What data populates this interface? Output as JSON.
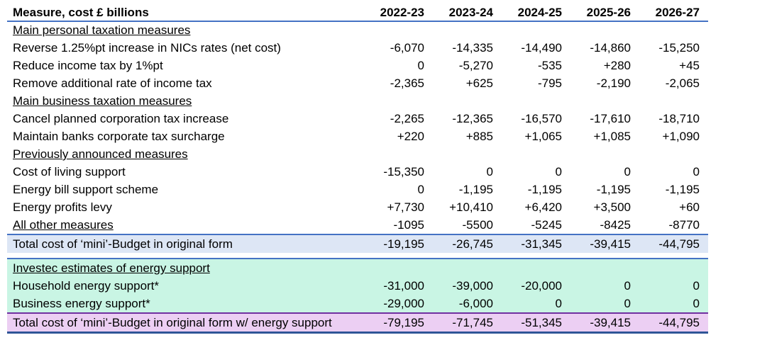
{
  "header": {
    "measure": "Measure, cost £ billions",
    "years": [
      "2022-23",
      "2023-24",
      "2024-25",
      "2025-26",
      "2026-27"
    ]
  },
  "rows": [
    {
      "label": "Main personal taxation measures",
      "section": true
    },
    {
      "label": "Reverse 1.25%pt increase in NICs rates (net cost)",
      "values": [
        "-6,070",
        "-14,335",
        "-14,490",
        "-14,860",
        "-15,250"
      ]
    },
    {
      "label": "Reduce income tax by 1%pt",
      "values": [
        "0",
        "-5,270",
        "-535",
        "+280",
        "+45"
      ]
    },
    {
      "label": "Remove additional rate of income tax",
      "values": [
        "-2,365",
        "+625",
        "-795",
        "-2,190",
        "-2,065"
      ]
    },
    {
      "label": "Main business taxation measures",
      "section": true
    },
    {
      "label": "Cancel planned corporation tax increase",
      "values": [
        "-2,265",
        "-12,365",
        "-16,570",
        "-17,610",
        "-18,710"
      ]
    },
    {
      "label": "Maintain banks corporate tax surcharge",
      "values": [
        "+220",
        "+885",
        "+1,065",
        "+1,085",
        "+1,090"
      ]
    },
    {
      "label": "Previously announced measures",
      "section": true
    },
    {
      "label": "Cost of living support",
      "values": [
        "-15,350",
        "0",
        "0",
        "0",
        "0"
      ]
    },
    {
      "label": "Energy bill support scheme",
      "values": [
        "0",
        "-1,195",
        "-1,195",
        "-1,195",
        "-1,195"
      ]
    },
    {
      "label": "Energy profits levy",
      "values": [
        "+7,730",
        "+10,410",
        "+6,420",
        "+3,500",
        "+60"
      ]
    },
    {
      "label": "All other measures",
      "values": [
        "-1095",
        "-5500",
        "-5245",
        "-8425",
        "-8770"
      ],
      "underline": true
    }
  ],
  "total": {
    "label": "Total cost of ‘mini’-Budget in original form",
    "values": [
      "-19,195",
      "-26,745",
      "-31,345",
      "-39,415",
      "-44,795"
    ]
  },
  "energy": {
    "section": "Investec estimates of energy support",
    "rows": [
      {
        "label": "Household energy support*",
        "values": [
          "-31,000",
          "-39,000",
          "-20,000",
          "0",
          "0"
        ]
      },
      {
        "label": "Business energy support*",
        "values": [
          "-29,000",
          "-6,000",
          "0",
          "0",
          "0"
        ]
      }
    ]
  },
  "grand_total": {
    "label": "Total cost of ‘mini’-Budget in original form w/ energy support",
    "values": [
      "-79,195",
      "-71,745",
      "-51,345",
      "-39,415",
      "-44,795"
    ]
  },
  "colors": {
    "rule": "#4472c4",
    "total_bg": "#dde6f5",
    "energy_bg": "#c9f5e4",
    "grand_bg": "#eccff3",
    "grand_rule": "#7030a0"
  }
}
